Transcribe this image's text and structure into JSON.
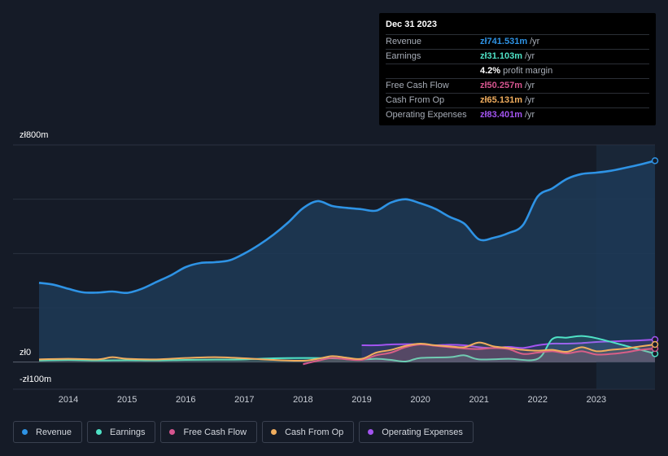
{
  "tooltip": {
    "date": "Dec 31 2023",
    "rows": [
      {
        "label": "Revenue",
        "value": "zł741.531m",
        "unit": "/yr",
        "color": "#2e93e5"
      },
      {
        "label": "Earnings",
        "value": "zł31.103m",
        "unit": "/yr",
        "color": "#4fe2c6"
      },
      {
        "label": "",
        "value": "4.2%",
        "unit": "profit margin",
        "color": "#ffffff"
      },
      {
        "label": "Free Cash Flow",
        "value": "zł50.257m",
        "unit": "/yr",
        "color": "#d6558f"
      },
      {
        "label": "Cash From Op",
        "value": "zł65.131m",
        "unit": "/yr",
        "color": "#f0ad5e"
      },
      {
        "label": "Operating Expenses",
        "value": "zł83.401m",
        "unit": "/yr",
        "color": "#a354f0"
      }
    ]
  },
  "legend": [
    {
      "label": "Revenue",
      "color": "#2e93e5"
    },
    {
      "label": "Earnings",
      "color": "#4fe2c6"
    },
    {
      "label": "Free Cash Flow",
      "color": "#d6558f"
    },
    {
      "label": "Cash From Op",
      "color": "#f0ad5e"
    },
    {
      "label": "Operating Expenses",
      "color": "#a354f0"
    }
  ],
  "chart_data": {
    "type": "line",
    "title": "",
    "xlabel": "",
    "ylabel": "",
    "ylim": [
      -100,
      800
    ],
    "xlim": [
      2013.5,
      2024.0
    ],
    "y_tick_labels": [
      "zł800m",
      "zł0",
      "-zł100m"
    ],
    "x_tick_labels": [
      "2014",
      "2015",
      "2016",
      "2017",
      "2018",
      "2019",
      "2020",
      "2021",
      "2022",
      "2023"
    ],
    "highlight_from": 2023.0,
    "series": [
      {
        "name": "Revenue",
        "color": "#2e93e5",
        "fill": true,
        "x": [
          2013.5,
          2013.75,
          2014.0,
          2014.25,
          2014.5,
          2014.75,
          2015.0,
          2015.25,
          2015.5,
          2015.75,
          2016.0,
          2016.25,
          2016.5,
          2016.75,
          2017.0,
          2017.25,
          2017.5,
          2017.75,
          2018.0,
          2018.25,
          2018.5,
          2018.75,
          2019.0,
          2019.25,
          2019.5,
          2019.75,
          2020.0,
          2020.25,
          2020.5,
          2020.75,
          2021.0,
          2021.25,
          2021.5,
          2021.75,
          2022.0,
          2022.25,
          2022.5,
          2022.75,
          2023.0,
          2023.25,
          2023.5,
          2023.75,
          2024.0
        ],
        "values": [
          292,
          285,
          270,
          257,
          256,
          260,
          255,
          270,
          295,
          320,
          350,
          365,
          368,
          375,
          400,
          432,
          470,
          515,
          567,
          593,
          575,
          568,
          563,
          558,
          588,
          600,
          585,
          565,
          535,
          510,
          452,
          458,
          475,
          505,
          610,
          640,
          675,
          693,
          698,
          705,
          716,
          728,
          742
        ]
      },
      {
        "name": "Earnings",
        "color": "#4fe2c6",
        "fill": false,
        "x": [
          2013.5,
          2014.0,
          2014.5,
          2015.0,
          2015.5,
          2016.0,
          2016.5,
          2017.0,
          2017.5,
          2018.0,
          2018.5,
          2019.0,
          2019.25,
          2019.5,
          2019.75,
          2020.0,
          2020.5,
          2020.75,
          2021.0,
          2021.5,
          2022.0,
          2022.25,
          2022.5,
          2022.75,
          2023.0,
          2023.5,
          2024.0
        ],
        "values": [
          6,
          8,
          6,
          7,
          6,
          8,
          9,
          10,
          14,
          15,
          14,
          10,
          12,
          8,
          2,
          15,
          18,
          25,
          10,
          12,
          12,
          85,
          90,
          96,
          88,
          60,
          31
        ]
      },
      {
        "name": "Free Cash Flow",
        "color": "#d6558f",
        "fill": false,
        "x": [
          2018.0,
          2018.25,
          2018.5,
          2018.75,
          2019.0,
          2019.25,
          2019.5,
          2019.75,
          2020.0,
          2020.25,
          2020.5,
          2020.75,
          2021.0,
          2021.25,
          2021.5,
          2021.75,
          2022.0,
          2022.25,
          2022.5,
          2022.75,
          2023.0,
          2023.25,
          2023.5,
          2023.75,
          2024.0
        ],
        "values": [
          -8,
          5,
          15,
          10,
          8,
          25,
          35,
          55,
          65,
          60,
          55,
          50,
          48,
          52,
          48,
          30,
          35,
          40,
          32,
          40,
          28,
          30,
          36,
          45,
          50
        ]
      },
      {
        "name": "Cash From Op",
        "color": "#f0ad5e",
        "fill": false,
        "x": [
          2013.5,
          2014.0,
          2014.5,
          2014.75,
          2015.0,
          2015.5,
          2016.0,
          2016.5,
          2017.0,
          2017.5,
          2018.0,
          2018.25,
          2018.5,
          2018.75,
          2019.0,
          2019.25,
          2019.5,
          2019.75,
          2020.0,
          2020.25,
          2020.5,
          2020.75,
          2021.0,
          2021.25,
          2021.5,
          2021.75,
          2022.0,
          2022.25,
          2022.5,
          2022.75,
          2023.0,
          2023.25,
          2023.5,
          2023.75,
          2024.0
        ],
        "values": [
          10,
          12,
          10,
          18,
          12,
          10,
          15,
          18,
          14,
          8,
          5,
          12,
          22,
          16,
          12,
          35,
          45,
          60,
          68,
          62,
          58,
          55,
          72,
          58,
          52,
          45,
          42,
          45,
          38,
          55,
          40,
          45,
          50,
          58,
          65
        ]
      },
      {
        "name": "Operating Expenses",
        "color": "#a354f0",
        "fill": false,
        "x": [
          2019.0,
          2019.25,
          2019.5,
          2019.75,
          2020.0,
          2020.25,
          2020.5,
          2020.75,
          2021.0,
          2021.25,
          2021.5,
          2021.75,
          2022.0,
          2022.25,
          2022.5,
          2022.75,
          2023.0,
          2023.25,
          2023.5,
          2023.75,
          2024.0
        ],
        "values": [
          62,
          62,
          65,
          66,
          66,
          62,
          64,
          62,
          55,
          52,
          56,
          52,
          62,
          68,
          68,
          70,
          74,
          76,
          78,
          80,
          83
        ]
      }
    ]
  }
}
